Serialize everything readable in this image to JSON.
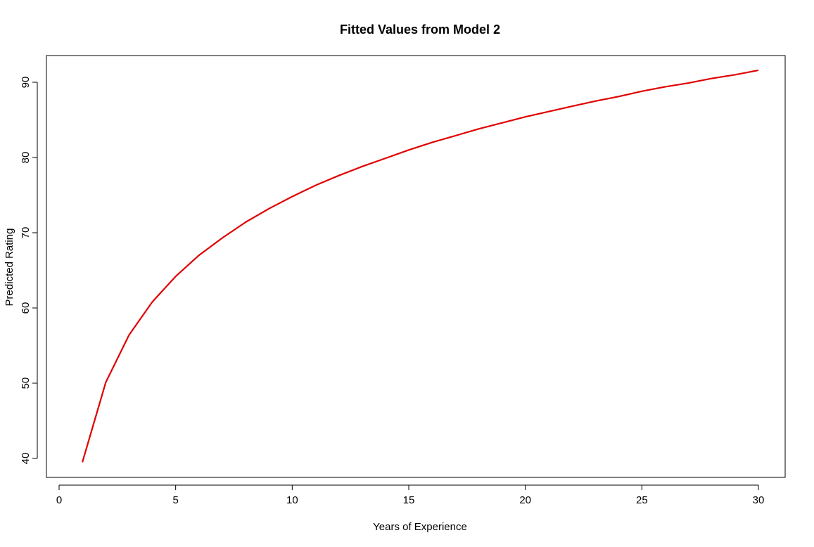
{
  "chart_data": {
    "type": "line",
    "title": "Fitted Values from Model 2",
    "xlabel": "Years of Experience",
    "ylabel": "Predicted Rating",
    "xlim": [
      0,
      30
    ],
    "ylim": [
      40,
      90
    ],
    "x_ticks": [
      0,
      5,
      10,
      15,
      20,
      25,
      30
    ],
    "y_ticks": [
      40,
      50,
      60,
      70,
      80,
      90
    ],
    "grid": false,
    "series": [
      {
        "color": "#e00000",
        "x": [
          1,
          2,
          3,
          4,
          5,
          6,
          7,
          8,
          9,
          10,
          11,
          12,
          13,
          14,
          15,
          16,
          17,
          18,
          19,
          20,
          21,
          22,
          23,
          24,
          25,
          26,
          27,
          28,
          29,
          30
        ],
        "y": [
          39.5,
          50.1,
          56.4,
          60.8,
          64.2,
          67.0,
          69.3,
          71.4,
          73.2,
          74.8,
          76.3,
          77.6,
          78.8,
          79.9,
          81.0,
          82.0,
          82.9,
          83.8,
          84.6,
          85.4,
          86.1,
          86.8,
          87.5,
          88.1,
          88.8,
          89.4,
          89.9,
          90.5,
          91.0,
          91.6
        ]
      }
    ]
  }
}
